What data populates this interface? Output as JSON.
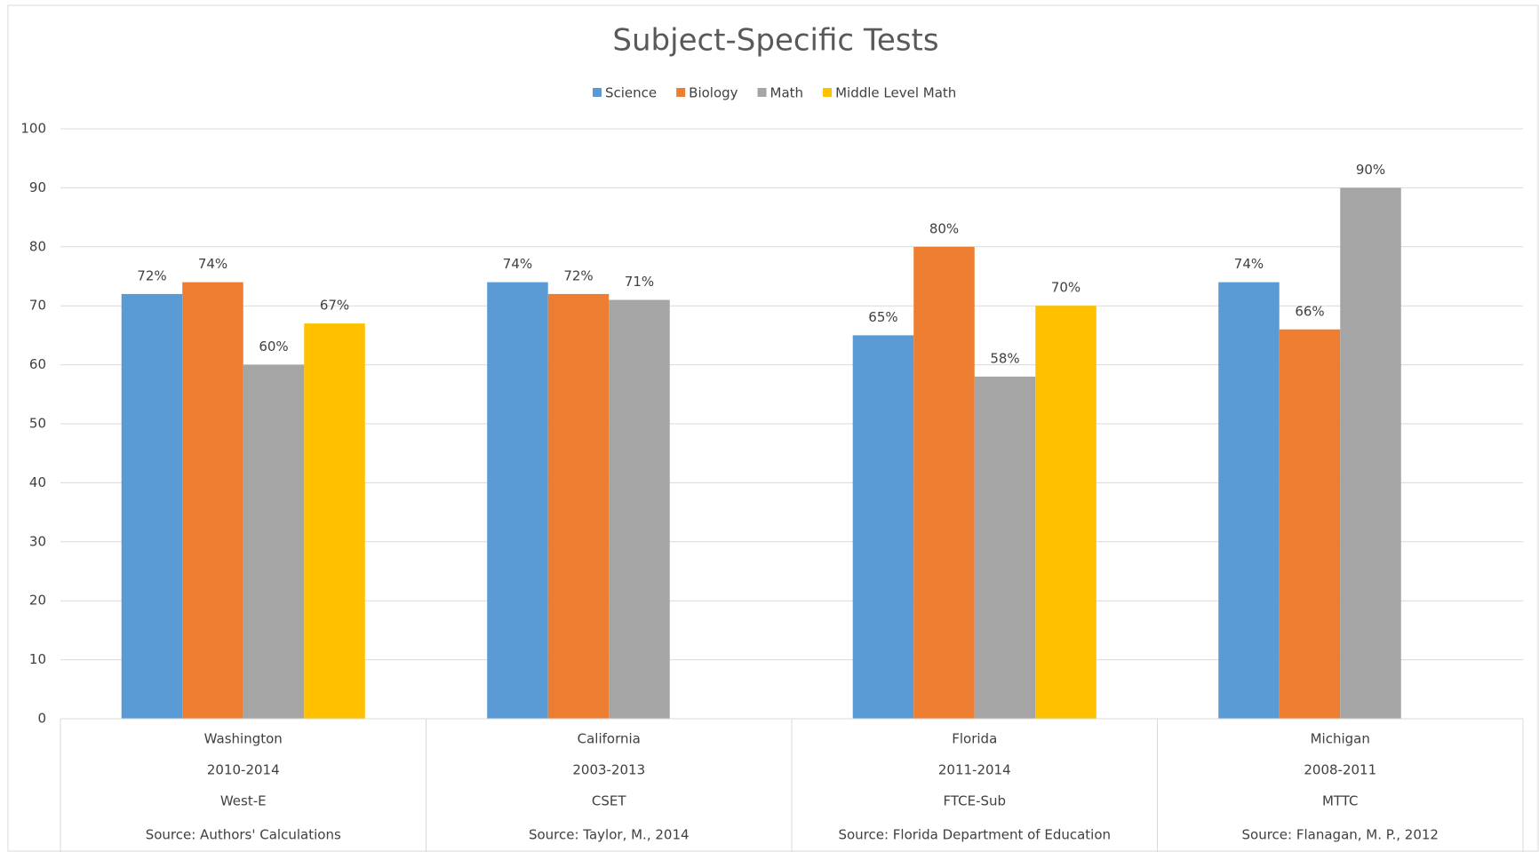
{
  "chart_data": {
    "type": "bar",
    "title": "Subject-Specific Tests",
    "categories": [
      [
        "Washington",
        "2010-2014",
        "West-E",
        "Source: Authors' Calculations"
      ],
      [
        "California",
        "2003-2013",
        "CSET",
        "Source: Taylor, M., 2014"
      ],
      [
        "Florida",
        "2011-2014",
        "FTCE-Sub",
        "Source: Florida Department of Education"
      ],
      [
        "Michigan",
        "2008-2011",
        "MTTC",
        "Source: Flanagan, M. P., 2012"
      ]
    ],
    "series": [
      {
        "name": "Science",
        "color": "#5b9bd5",
        "values": [
          72,
          74,
          65,
          74
        ],
        "value_labels": [
          "72%",
          "74%",
          "65%",
          "74%"
        ]
      },
      {
        "name": "Biology",
        "color": "#ed7d31",
        "values": [
          74,
          72,
          80,
          66
        ],
        "value_labels": [
          "74%",
          "72%",
          "80%",
          "66%"
        ]
      },
      {
        "name": "Math",
        "color": "#a5a5a5",
        "values": [
          60,
          71,
          58,
          90
        ],
        "value_labels": [
          "60%",
          "71%",
          "58%",
          "90%"
        ]
      },
      {
        "name": "Middle Level Math",
        "color": "#ffc000",
        "values": [
          67,
          null,
          70,
          null
        ],
        "value_labels": [
          "67%",
          null,
          "70%",
          null
        ]
      }
    ],
    "ylim": [
      0,
      100
    ],
    "yticks": [
      0,
      10,
      20,
      30,
      40,
      50,
      60,
      70,
      80,
      90,
      100
    ],
    "grid": true,
    "legend": "top"
  }
}
